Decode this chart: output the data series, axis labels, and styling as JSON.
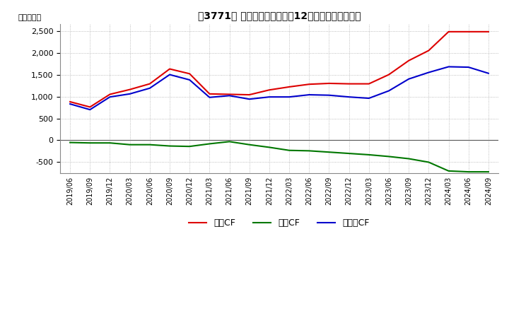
{
  "title": "［3771］ キャッシュフローの12か月移動合計の推移",
  "ylabel": "（百万円）",
  "background_color": "#ffffff",
  "grid_color": "#aaaaaa",
  "x_labels": [
    "2019/06",
    "2019/09",
    "2019/12",
    "2020/03",
    "2020/06",
    "2020/09",
    "2020/12",
    "2021/03",
    "2021/06",
    "2021/09",
    "2021/12",
    "2022/03",
    "2022/06",
    "2022/09",
    "2022/12",
    "2023/03",
    "2023/06",
    "2023/09",
    "2023/12",
    "2024/03",
    "2024/06",
    "2024/09"
  ],
  "operating_cf": [
    880,
    760,
    1050,
    1160,
    1290,
    1630,
    1520,
    1060,
    1050,
    1040,
    1150,
    1220,
    1280,
    1300,
    1290,
    1290,
    1500,
    1820,
    2050,
    2480,
    2480,
    2480
  ],
  "investing_cf": [
    -50,
    -60,
    -60,
    -100,
    -100,
    -130,
    -140,
    -80,
    -30,
    -100,
    -160,
    -230,
    -240,
    -270,
    -300,
    -330,
    -370,
    -420,
    -500,
    -700,
    -720,
    -720
  ],
  "free_cf": [
    830,
    700,
    990,
    1060,
    1190,
    1500,
    1380,
    980,
    1020,
    940,
    990,
    990,
    1040,
    1030,
    990,
    960,
    1130,
    1400,
    1550,
    1680,
    1670,
    1530
  ],
  "operating_color": "#dd0000",
  "investing_color": "#007700",
  "free_color": "#0000cc",
  "ylim": [
    -750,
    2650
  ],
  "yticks": [
    -500,
    0,
    500,
    1000,
    1500,
    2000,
    2500
  ],
  "legend_labels": [
    "営業CF",
    "投資CF",
    "フリーCF"
  ]
}
